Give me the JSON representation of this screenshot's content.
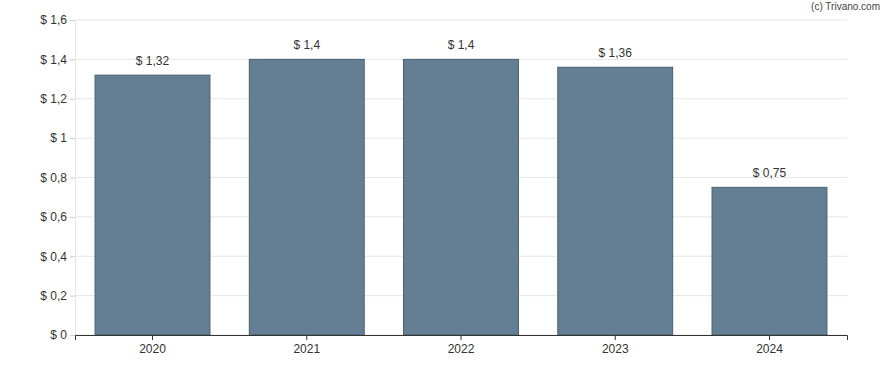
{
  "chart_data": {
    "type": "bar",
    "annotations": [
      "(c) Trivano.com"
    ],
    "categories": [
      "2020",
      "2021",
      "2022",
      "2023",
      "2024"
    ],
    "values": [
      1.32,
      1.4,
      1.4,
      1.36,
      0.75
    ],
    "value_labels": [
      "$ 1,32",
      "$ 1,4",
      "$ 1,4",
      "$ 1,36",
      "$ 0,75"
    ],
    "color": "#647f94",
    "ylim": [
      0,
      1.6
    ],
    "yticks": [
      {
        "value": 0,
        "label": "$ 0"
      },
      {
        "value": 0.2,
        "label": "$ 0,2"
      },
      {
        "value": 0.4,
        "label": "$ 0,4"
      },
      {
        "value": 0.6,
        "label": "$ 0,6"
      },
      {
        "value": 0.8,
        "label": "$ 0,8"
      },
      {
        "value": 1,
        "label": "$ 1"
      },
      {
        "value": 1.2,
        "label": "$ 1,2"
      },
      {
        "value": 1.4,
        "label": "$ 1,4"
      },
      {
        "value": 1.6,
        "label": "$ 1,6"
      }
    ],
    "grid": true,
    "data_labels": true
  }
}
